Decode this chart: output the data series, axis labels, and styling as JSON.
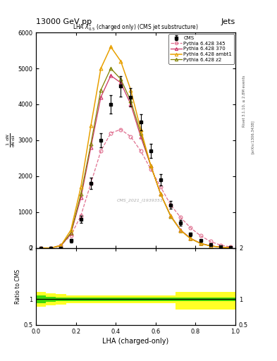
{
  "title": "13000 GeV pp",
  "title_right": "Jets",
  "subplot_title": "LHA $\\lambda^{1}_{0.5}$ (charged only) (CMS jet substructure)",
  "xlabel": "LHA (charged-only)",
  "ylabel": "$\\frac{1}{\\mathrm{d}N}\\frac{\\mathrm{d}N}{\\mathrm{d}\\lambda}$",
  "ratio_ylabel": "Ratio to CMS",
  "watermark": "CMS_2021_I1939353",
  "lha_bins": [
    0.0,
    0.05,
    0.1,
    0.15,
    0.2,
    0.25,
    0.3,
    0.35,
    0.4,
    0.45,
    0.5,
    0.55,
    0.6,
    0.65,
    0.7,
    0.75,
    0.8,
    0.85,
    0.9,
    0.95,
    1.0
  ],
  "cms_data": [
    0,
    0,
    0,
    200,
    800,
    1800,
    3000,
    4000,
    4500,
    4200,
    3500,
    2700,
    1900,
    1200,
    700,
    380,
    200,
    100,
    40,
    10
  ],
  "cms_errors": [
    0,
    0,
    0,
    50,
    100,
    150,
    200,
    250,
    280,
    260,
    220,
    190,
    150,
    100,
    70,
    50,
    35,
    25,
    15,
    8
  ],
  "pythia345_data": [
    0,
    0,
    80,
    350,
    900,
    1800,
    2700,
    3200,
    3300,
    3100,
    2700,
    2200,
    1700,
    1200,
    850,
    560,
    340,
    180,
    80,
    30
  ],
  "pythia370_data": [
    0,
    0,
    60,
    400,
    1400,
    2800,
    4200,
    4800,
    4600,
    4000,
    3100,
    2300,
    1500,
    900,
    500,
    270,
    130,
    60,
    22,
    7
  ],
  "pythia_ambt1_data": [
    0,
    0,
    70,
    500,
    1700,
    3400,
    5000,
    5600,
    5200,
    4400,
    3300,
    2300,
    1500,
    900,
    490,
    260,
    125,
    55,
    20,
    6
  ],
  "pythia_z2_data": [
    0,
    0,
    65,
    420,
    1500,
    2900,
    4400,
    5000,
    4700,
    4100,
    3200,
    2300,
    1500,
    880,
    490,
    260,
    125,
    55,
    20,
    6
  ],
  "cms_color": "black",
  "pythia345_color": "#e07090",
  "pythia370_color": "#cc3366",
  "pythia_ambt1_color": "#e8a000",
  "pythia_z2_color": "#808000",
  "ratio_green_lo": [
    0.93,
    0.95,
    0.96,
    0.97,
    0.97,
    0.97,
    0.97,
    0.97,
    0.97,
    0.97,
    0.97,
    0.97,
    0.97,
    0.97,
    0.97,
    0.97,
    0.97,
    0.97,
    0.97,
    0.97
  ],
  "ratio_green_hi": [
    1.07,
    1.05,
    1.04,
    1.03,
    1.03,
    1.03,
    1.03,
    1.03,
    1.03,
    1.03,
    1.03,
    1.03,
    1.03,
    1.03,
    1.03,
    1.03,
    1.03,
    1.03,
    1.03,
    1.03
  ],
  "ratio_yellow_lo": [
    0.85,
    0.88,
    0.9,
    0.92,
    0.92,
    0.92,
    0.92,
    0.92,
    0.92,
    0.92,
    0.92,
    0.92,
    0.92,
    0.92,
    0.8,
    0.8,
    0.8,
    0.8,
    0.8,
    0.8
  ],
  "ratio_yellow_hi": [
    1.15,
    1.12,
    1.1,
    1.08,
    1.08,
    1.08,
    1.08,
    1.08,
    1.08,
    1.08,
    1.08,
    1.08,
    1.08,
    1.08,
    1.15,
    1.15,
    1.15,
    1.15,
    1.15,
    1.15
  ],
  "ylim_main": [
    0,
    6000
  ],
  "ylim_ratio": [
    0.5,
    2.0
  ],
  "xlim": [
    0.0,
    1.0
  ],
  "right_label_top": "Rivet 3.1.10, ≥ 2.8M events",
  "right_label_bottom": "[arXiv:1306.3438]"
}
